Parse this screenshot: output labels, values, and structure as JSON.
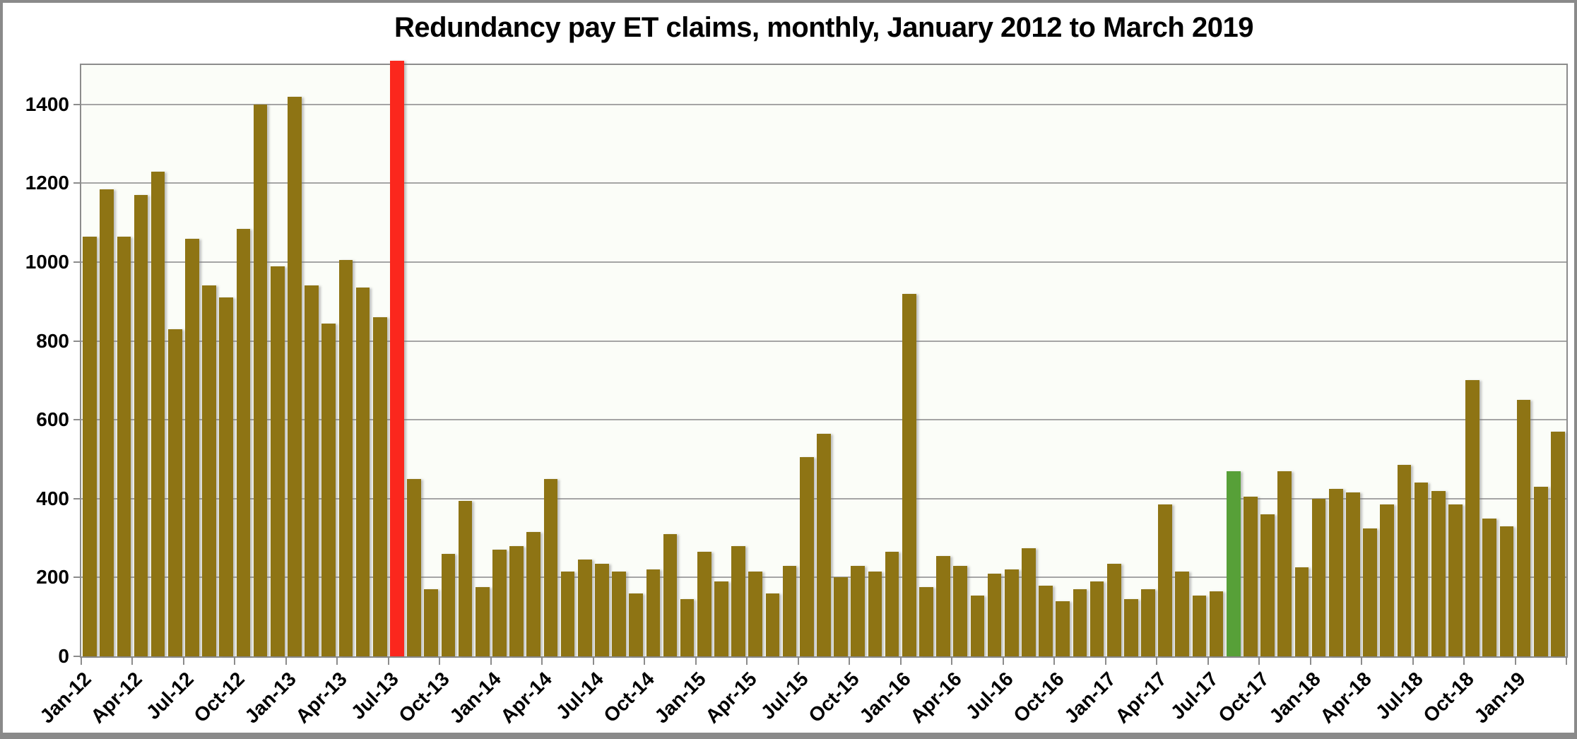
{
  "title": "Redundancy pay ET claims, monthly, January 2012 to March 2019",
  "colors": {
    "bar_default": "#8e7414",
    "bar_red": "#fb271d",
    "bar_green": "#57a038",
    "gridline": "#a5a5a5",
    "frame": "#8c8c8c",
    "plot_background": "#fbfdf8",
    "text": "#000000"
  },
  "chart_data": {
    "type": "bar",
    "title": "Redundancy pay ET claims, monthly, January 2012 to March 2019",
    "xlabel": "",
    "ylabel": "",
    "ylim": [
      0,
      1500
    ],
    "yticks": [
      0,
      200,
      400,
      600,
      800,
      1000,
      1200,
      1400
    ],
    "grid": true,
    "legend": "none",
    "months": [
      "Jan-12",
      "Feb-12",
      "Mar-12",
      "Apr-12",
      "May-12",
      "Jun-12",
      "Jul-12",
      "Aug-12",
      "Sep-12",
      "Oct-12",
      "Nov-12",
      "Dec-12",
      "Jan-13",
      "Feb-13",
      "Mar-13",
      "Apr-13",
      "May-13",
      "Jun-13",
      "Jul-13",
      "Aug-13",
      "Sep-13",
      "Oct-13",
      "Nov-13",
      "Dec-13",
      "Jan-14",
      "Feb-14",
      "Mar-14",
      "Apr-14",
      "May-14",
      "Jun-14",
      "Jul-14",
      "Aug-14",
      "Sep-14",
      "Oct-14",
      "Nov-14",
      "Dec-14",
      "Jan-15",
      "Feb-15",
      "Mar-15",
      "Apr-15",
      "May-15",
      "Jun-15",
      "Jul-15",
      "Aug-15",
      "Sep-15",
      "Oct-15",
      "Nov-15",
      "Dec-15",
      "Jan-16",
      "Feb-16",
      "Mar-16",
      "Apr-16",
      "May-16",
      "Jun-16",
      "Jul-16",
      "Aug-16",
      "Sep-16",
      "Oct-16",
      "Nov-16",
      "Dec-16",
      "Jan-17",
      "Feb-17",
      "Mar-17",
      "Apr-17",
      "May-17",
      "Jun-17",
      "Jul-17",
      "Aug-17",
      "Sep-17",
      "Oct-17",
      "Nov-17",
      "Dec-17",
      "Jan-18",
      "Feb-18",
      "Mar-18",
      "Apr-18",
      "May-18",
      "Jun-18",
      "Jul-18",
      "Aug-18",
      "Sep-18",
      "Oct-18",
      "Nov-18",
      "Dec-18",
      "Jan-19",
      "Feb-19",
      "Mar-19"
    ],
    "values": [
      1065,
      1185,
      1065,
      1170,
      1230,
      830,
      1060,
      940,
      910,
      1085,
      1400,
      990,
      1420,
      940,
      845,
      1005,
      935,
      860,
      1510,
      450,
      170,
      260,
      395,
      175,
      270,
      280,
      315,
      450,
      215,
      245,
      235,
      215,
      160,
      220,
      310,
      145,
      265,
      190,
      280,
      215,
      160,
      230,
      505,
      565,
      200,
      230,
      215,
      265,
      920,
      175,
      255,
      230,
      155,
      210,
      220,
      275,
      180,
      140,
      170,
      190,
      235,
      145,
      170,
      385,
      215,
      155,
      165,
      470,
      405,
      360,
      470,
      225,
      400,
      425,
      415,
      325,
      385,
      485,
      440,
      420,
      385,
      700,
      350,
      330,
      650,
      430,
      570
    ],
    "highlight_colors": {
      "Jul-13": "#fb271d",
      "Aug-17": "#57a038"
    },
    "clipped_bars": [
      "Jul-13"
    ],
    "xtick_labels": [
      "Jan-12",
      "Apr-12",
      "Jul-12",
      "Oct-12",
      "Jan-13",
      "Apr-13",
      "Jul-13",
      "Oct-13",
      "Jan-14",
      "Apr-14",
      "Jul-14",
      "Oct-14",
      "Jan-15",
      "Apr-15",
      "Jul-15",
      "Oct-15",
      "Jan-16",
      "Apr-16",
      "Jul-16",
      "Oct-16",
      "Jan-17",
      "Apr-17",
      "Jul-17",
      "Oct-17",
      "Jan-18",
      "Apr-18",
      "Jul-18",
      "Oct-18",
      "Jan-19"
    ],
    "xtick_interval": 3,
    "legend_position": "none"
  }
}
